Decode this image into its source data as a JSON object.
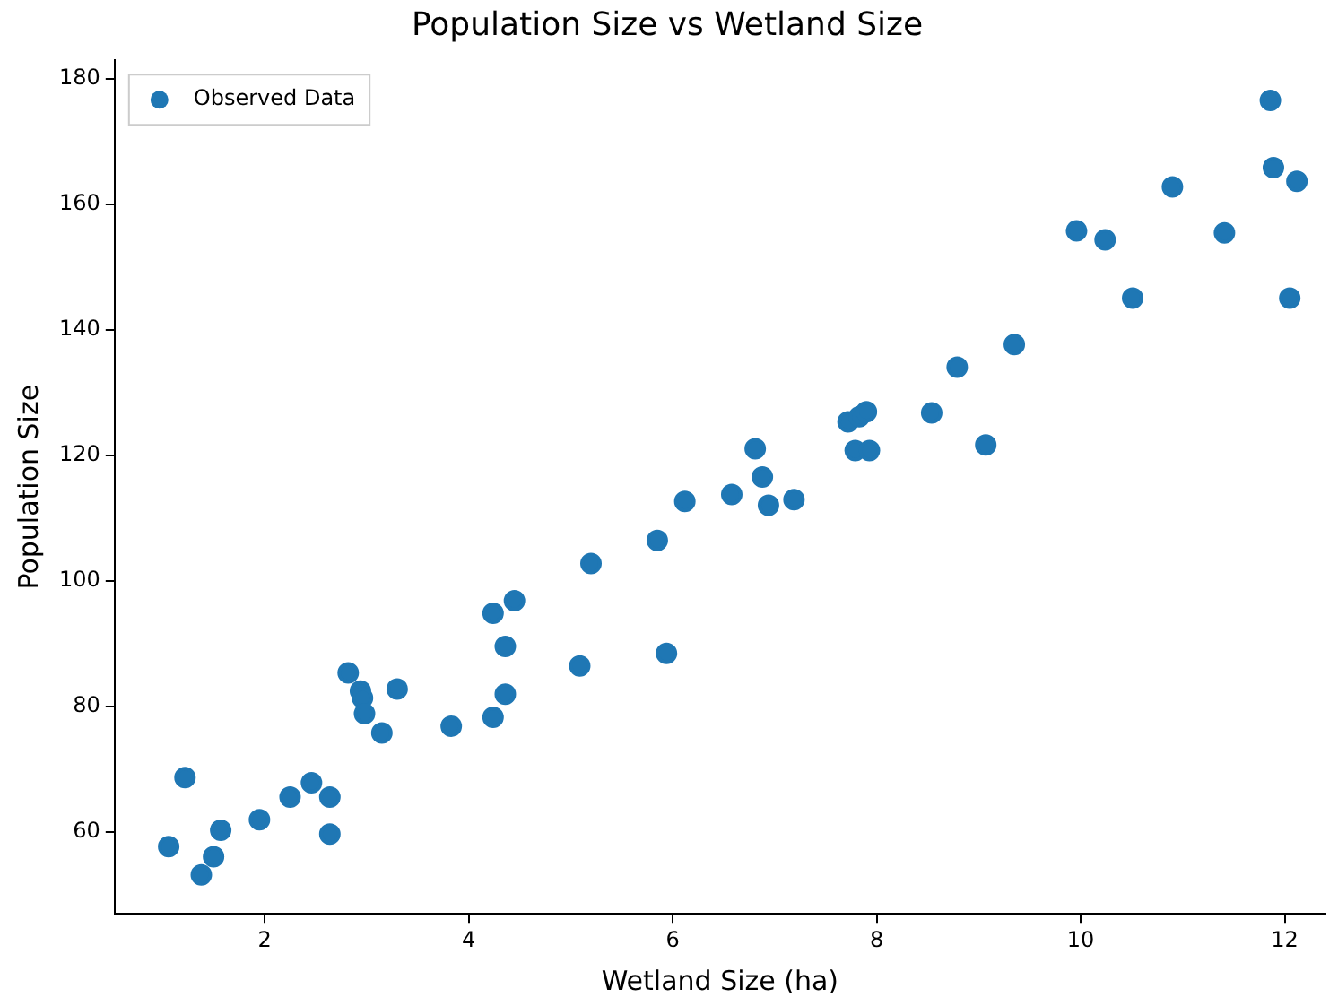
{
  "chart_data": {
    "type": "scatter",
    "title": "Population Size vs Wetland Size",
    "xlabel": "Wetland Size (ha)",
    "ylabel": "Population Size",
    "xlim": [
      0.53,
      12.4
    ],
    "xticks": [
      2,
      4,
      6,
      8,
      10,
      12
    ],
    "ylim": [
      47,
      183
    ],
    "yticks": [
      60,
      80,
      100,
      120,
      140,
      160,
      180
    ],
    "grid": false,
    "legend": "top left",
    "marker": "circle",
    "series": [
      {
        "name": "Observed Data",
        "color": "#1f77b4",
        "x": [
          1.06,
          1.22,
          1.38,
          1.5,
          1.57,
          1.95,
          2.25,
          2.46,
          2.64,
          2.64,
          2.82,
          2.94,
          2.96,
          2.98,
          3.15,
          3.3,
          3.83,
          4.24,
          4.24,
          4.36,
          4.36,
          4.45,
          5.09,
          5.2,
          5.85,
          5.94,
          6.12,
          6.58,
          6.81,
          6.88,
          6.94,
          7.19,
          7.72,
          7.79,
          7.83,
          7.9,
          7.93,
          8.54,
          8.79,
          9.07,
          9.35,
          9.96,
          10.24,
          10.51,
          10.9,
          11.41,
          11.86,
          11.89,
          12.05,
          12.12
        ],
        "values": [
          57.7,
          68.7,
          53.2,
          56.1,
          60.3,
          62,
          65.6,
          67.9,
          65.6,
          59.7,
          85.4,
          82.5,
          81.4,
          78.9,
          75.8,
          82.8,
          76.9,
          78.3,
          94.9,
          82,
          89.6,
          96.9,
          86.5,
          102.8,
          106.5,
          88.5,
          112.7,
          113.8,
          121.1,
          116.6,
          112.1,
          113,
          125.4,
          120.8,
          126.2,
          127,
          120.8,
          126.8,
          134.1,
          121.7,
          137.7,
          155.8,
          154.4,
          145.1,
          162.8,
          155.5,
          176.6,
          165.9,
          145.1,
          163.7
        ]
      }
    ]
  }
}
